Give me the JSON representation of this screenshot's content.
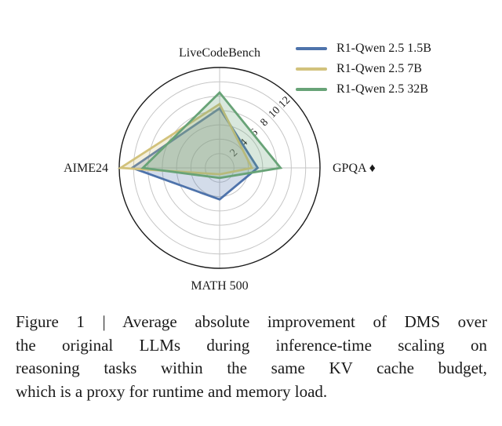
{
  "chart_data": {
    "type": "radar",
    "categories": [
      "LiveCodeBench",
      "GPQA ♦",
      "MATH 500",
      "AIME24"
    ],
    "axis_order": [
      "top",
      "right",
      "bottom",
      "left"
    ],
    "radial_ticks": [
      2,
      4,
      6,
      8,
      10,
      12
    ],
    "r_max": 14,
    "grid": true,
    "legend_position": "top-right",
    "series": [
      {
        "name": "R1-Qwen 2.5 1.5B",
        "color": "#4E73AB",
        "values": [
          8.3,
          5.3,
          4.4,
          12.2
        ]
      },
      {
        "name": "R1-Qwen 2.5 7B",
        "color": "#D2C27C",
        "values": [
          8.9,
          4.5,
          0.9,
          13.8
        ]
      },
      {
        "name": "R1-Qwen 2.5 32B",
        "color": "#68A377",
        "values": [
          10.5,
          8.5,
          1.4,
          10.7
        ]
      }
    ]
  },
  "figure": {
    "caption_lines": [
      "Figure 1 | Average absolute improvement of DMS over",
      "the original LLMs during inference-time scaling on",
      "reasoning tasks within the same KV cache budget,",
      "which is a proxy for runtime and memory load."
    ]
  },
  "colors": {
    "grid": "#c6c6c6",
    "outer_circle": "#1a1a1a",
    "text": "#1a1a1a",
    "background": "#ffffff"
  }
}
